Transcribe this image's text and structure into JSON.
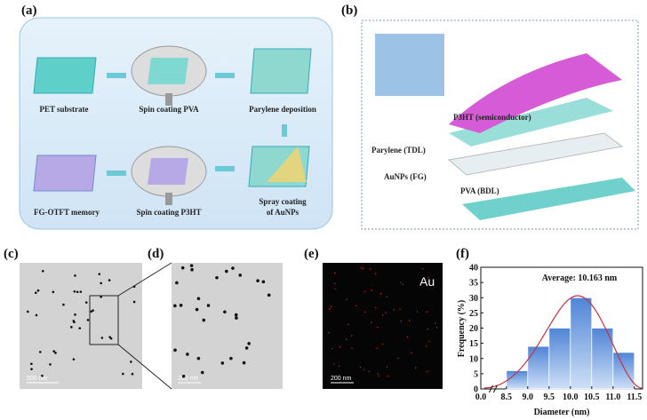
{
  "panel_a": {
    "label": "(a)",
    "steps": [
      [
        "PET substrate"
      ],
      [
        "Spin coating PVA"
      ],
      [
        "Parylene deposition"
      ],
      [
        "Spray coating",
        "of AuNPs"
      ],
      [
        "Spin coating P3HT"
      ],
      [
        "FG-OTFT memory"
      ]
    ]
  },
  "panel_b": {
    "label": "(b)",
    "layers": [
      "P3HT (semiconductor)",
      "Parylene (TDL)",
      "AuNPs (FG)",
      "PVA (BDL)"
    ]
  },
  "panel_c": {
    "label": "(c)",
    "scale_bar": "500 nm"
  },
  "panel_d": {
    "label": "(d)",
    "scale_bar": "200 nm"
  },
  "panel_e": {
    "label": "(e)",
    "element": "Au",
    "scale_bar": "200 nm"
  },
  "chart_data": {
    "type": "histogram",
    "label": "(f)",
    "annotation": "Average: 10.163 nm",
    "x_label": "Diameter (nm)",
    "y_label": "Frequency (%)",
    "bins": [
      8.5,
      9.0,
      9.5,
      10.0,
      10.5,
      11.0,
      11.5
    ],
    "values": [
      6,
      14,
      20,
      30,
      20,
      12
    ],
    "color": "#6f9fe0",
    "xlim": [
      0,
      11.7
    ],
    "xbreak": [
      0.3,
      8.2
    ],
    "xticks": [
      {
        "value": 0,
        "label": "0.0"
      },
      {
        "value": 8.5,
        "label": "8.5"
      },
      {
        "value": 9.0,
        "label": "9.0"
      },
      {
        "value": 9.5,
        "label": "9.5"
      },
      {
        "value": 10.0,
        "label": "10.0"
      },
      {
        "value": 10.5,
        "label": "10.5"
      },
      {
        "value": 11.0,
        "label": "11.0"
      },
      {
        "value": 11.5,
        "label": "11.5"
      }
    ],
    "ylim": [
      0,
      40
    ],
    "yticks": [
      0,
      5,
      10,
      15,
      20,
      25,
      30,
      35,
      40
    ]
  }
}
